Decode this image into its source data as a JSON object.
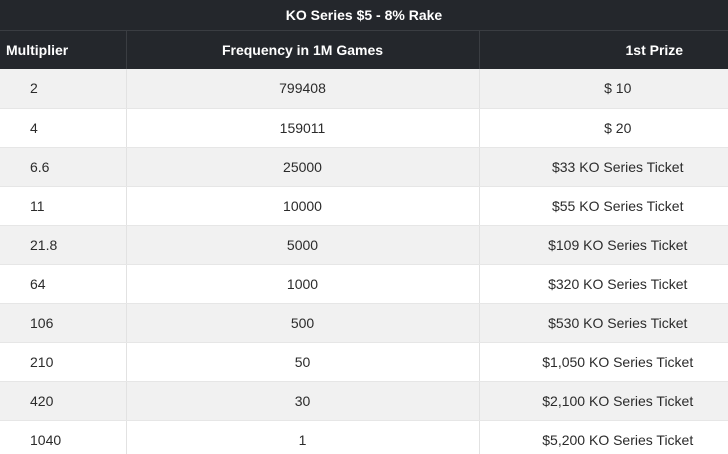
{
  "table": {
    "title": "KO Series $5 - 8% Rake",
    "headers": {
      "multiplier": "Multiplier",
      "frequency": "Frequency in 1M Games",
      "prize": "1st Prize"
    },
    "rows": [
      {
        "multiplier": "2",
        "frequency": "799408",
        "prize": "$ 10"
      },
      {
        "multiplier": "4",
        "frequency": "159011",
        "prize": "$ 20"
      },
      {
        "multiplier": "6.6",
        "frequency": "25000",
        "prize": "$33 KO Series Ticket"
      },
      {
        "multiplier": "11",
        "frequency": "10000",
        "prize": "$55 KO Series Ticket"
      },
      {
        "multiplier": "21.8",
        "frequency": "5000",
        "prize": "$109 KO Series Ticket"
      },
      {
        "multiplier": "64",
        "frequency": "1000",
        "prize": "$320 KO Series Ticket"
      },
      {
        "multiplier": "106",
        "frequency": "500",
        "prize": "$530 KO Series Ticket"
      },
      {
        "multiplier": "210",
        "frequency": "50",
        "prize": "$1,050 KO Series Ticket"
      },
      {
        "multiplier": "420",
        "frequency": "30",
        "prize": "$2,100 KO Series Ticket"
      },
      {
        "multiplier": "1040",
        "frequency": "1",
        "prize": "$5,200 KO Series Ticket"
      }
    ]
  },
  "colors": {
    "header_bg": "#24272c",
    "header_text": "#ffffff",
    "row_odd_bg": "#f1f1f1",
    "row_even_bg": "#ffffff",
    "cell_text": "#2b2b2b"
  }
}
